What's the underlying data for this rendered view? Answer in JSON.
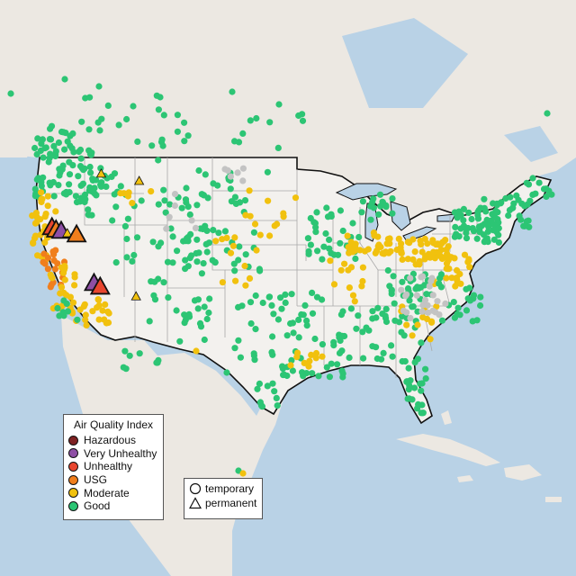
{
  "colors": {
    "water": "#b9d2e6",
    "land": "#ece8e2",
    "us_land": "#f3f1ee",
    "border": "#111111",
    "state_line": "#a9a9a9",
    "no_data": "#c3c3c3"
  },
  "legend": {
    "title": "Air Quality Index",
    "categories": [
      {
        "label": "Hazardous",
        "color": "#7e2223"
      },
      {
        "label": "Very Unhealthy",
        "color": "#8e4fa5"
      },
      {
        "label": "Unhealthy",
        "color": "#e8462f"
      },
      {
        "label": "USG",
        "color": "#f07e1c"
      },
      {
        "label": "Moderate",
        "color": "#f1c10e"
      },
      {
        "label": "Good",
        "color": "#2cc574"
      }
    ]
  },
  "monitor_types": {
    "items": [
      {
        "label": "temporary",
        "symbol": "circle-icon"
      },
      {
        "label": "permanent",
        "symbol": "triangle-icon"
      }
    ]
  },
  "monitors": {
    "permanent": [
      {
        "lon": -122.2,
        "lat": 40.2,
        "aqi": "Unhealthy"
      },
      {
        "lon": -121.8,
        "lat": 40.0,
        "aqi": "USG"
      },
      {
        "lon": -121.3,
        "lat": 39.9,
        "aqi": "Very Unhealthy"
      },
      {
        "lon": -120.7,
        "lat": 39.7,
        "aqi": "Moderate"
      },
      {
        "lon": -119.8,
        "lat": 39.6,
        "aqi": "USG"
      },
      {
        "lon": -118.1,
        "lat": 35.6,
        "aqi": "Very Unhealthy"
      },
      {
        "lon": -117.5,
        "lat": 35.3,
        "aqi": "Unhealthy"
      },
      {
        "lon": -117.4,
        "lat": 44.6,
        "aqi": "Moderate"
      },
      {
        "lon": -113.7,
        "lat": 44.0,
        "aqi": "Moderate"
      },
      {
        "lon": -114.0,
        "lat": 34.5,
        "aqi": "Moderate"
      }
    ]
  }
}
